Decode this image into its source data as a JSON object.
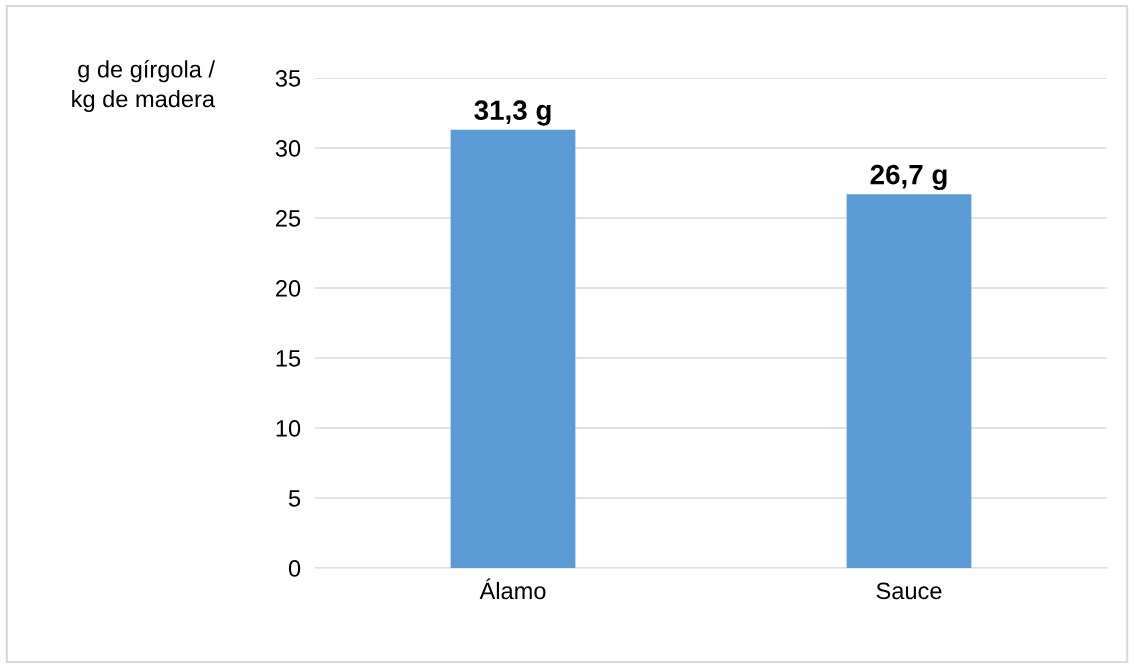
{
  "chart_data": {
    "type": "bar",
    "ylabel": "g de gírgola /\nkg de madera",
    "categories": [
      "Álamo",
      "Sauce"
    ],
    "values": [
      31.3,
      26.7
    ],
    "color": "#5b9bd5",
    "value_labels": [
      "31,3 g",
      "26,7 g"
    ],
    "ylim": [
      0,
      35
    ],
    "yticks": [
      0,
      5,
      10,
      15,
      20,
      25,
      30,
      35
    ],
    "grid": "y"
  }
}
